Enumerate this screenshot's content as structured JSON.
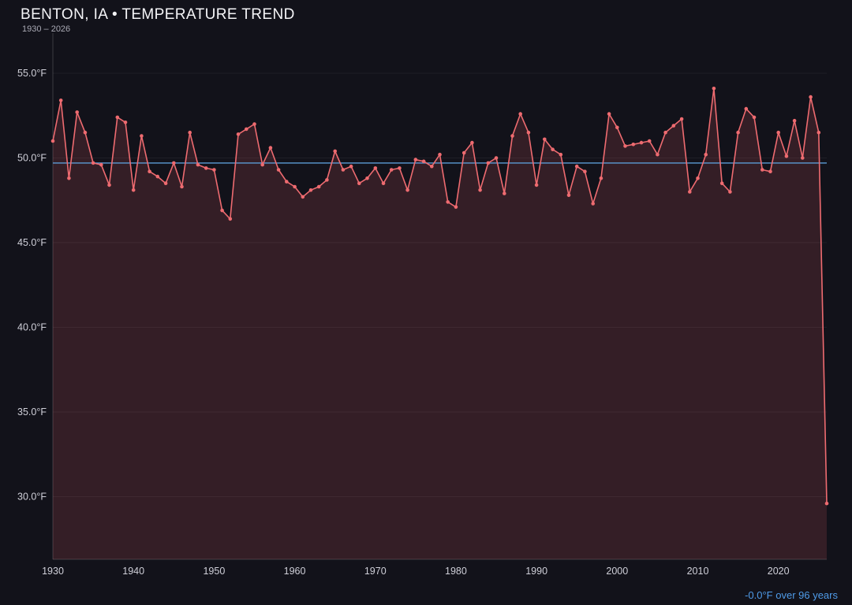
{
  "header": {
    "title": "BENTON, IA • TEMPERATURE TREND",
    "subtitle": "1930 – 2026"
  },
  "footer": {
    "trend_summary": "-0.0°F over 96 years"
  },
  "colors": {
    "background": "#12121a",
    "line": "#ee6b70",
    "point": "#ee6b70",
    "area_fill": "rgba(232,96,106,0.16)",
    "trend_line": "#5b9bd5",
    "grid": "rgba(255,255,255,0.06)",
    "axis": "rgba(255,255,255,0.18)",
    "tick_text": "#cfcfd8"
  },
  "chart_data": {
    "type": "line",
    "title": "BENTON, IA • TEMPERATURE TREND",
    "xlabel": "",
    "ylabel": "",
    "grid": true,
    "legend_position": "none",
    "ylim": [
      26.3,
      57.0
    ],
    "xlim": [
      1930,
      2026
    ],
    "y_ticks": [
      {
        "value": 55,
        "label": "55.0°F"
      },
      {
        "value": 50,
        "label": "50.0°F"
      },
      {
        "value": 45,
        "label": "45.0°F"
      },
      {
        "value": 40,
        "label": "40.0°F"
      },
      {
        "value": 35,
        "label": "35.0°F"
      },
      {
        "value": 30,
        "label": "30.0°F"
      }
    ],
    "x_ticks": [
      {
        "value": 1930,
        "label": "1930"
      },
      {
        "value": 1940,
        "label": "1940"
      },
      {
        "value": 1950,
        "label": "1950"
      },
      {
        "value": 1960,
        "label": "1960"
      },
      {
        "value": 1970,
        "label": "1970"
      },
      {
        "value": 1980,
        "label": "1980"
      },
      {
        "value": 1990,
        "label": "1990"
      },
      {
        "value": 2000,
        "label": "2000"
      },
      {
        "value": 2010,
        "label": "2010"
      },
      {
        "value": 2020,
        "label": "2020"
      }
    ],
    "trend_line": {
      "value": 49.7
    },
    "series": [
      {
        "name": "Temperature",
        "x": [
          1930,
          1931,
          1932,
          1933,
          1934,
          1935,
          1936,
          1937,
          1938,
          1939,
          1940,
          1941,
          1942,
          1943,
          1944,
          1945,
          1946,
          1947,
          1948,
          1949,
          1950,
          1951,
          1952,
          1953,
          1954,
          1955,
          1956,
          1957,
          1958,
          1959,
          1960,
          1961,
          1962,
          1963,
          1964,
          1965,
          1966,
          1967,
          1968,
          1969,
          1970,
          1971,
          1972,
          1973,
          1974,
          1975,
          1976,
          1977,
          1978,
          1979,
          1980,
          1981,
          1982,
          1983,
          1984,
          1985,
          1986,
          1987,
          1988,
          1989,
          1990,
          1991,
          1992,
          1993,
          1994,
          1995,
          1996,
          1997,
          1998,
          1999,
          2000,
          2001,
          2002,
          2003,
          2004,
          2005,
          2006,
          2007,
          2008,
          2009,
          2010,
          2011,
          2012,
          2013,
          2014,
          2015,
          2016,
          2017,
          2018,
          2019,
          2020,
          2021,
          2022,
          2023,
          2024,
          2025,
          2026
        ],
        "values": [
          51.0,
          53.4,
          48.8,
          52.7,
          51.5,
          49.7,
          49.6,
          48.4,
          52.4,
          52.1,
          48.1,
          51.3,
          49.2,
          48.9,
          48.5,
          49.7,
          48.3,
          51.5,
          49.6,
          49.4,
          49.3,
          46.9,
          46.4,
          51.4,
          51.7,
          52.0,
          49.6,
          50.6,
          49.3,
          48.6,
          48.3,
          47.7,
          48.1,
          48.3,
          48.7,
          50.4,
          49.3,
          49.5,
          48.5,
          48.8,
          49.4,
          48.5,
          49.3,
          49.4,
          48.1,
          49.9,
          49.8,
          49.5,
          50.2,
          47.4,
          47.1,
          50.3,
          50.9,
          48.1,
          49.7,
          50.0,
          47.9,
          51.3,
          52.6,
          51.5,
          48.4,
          51.1,
          50.5,
          50.2,
          47.8,
          49.5,
          49.2,
          47.3,
          48.8,
          52.6,
          51.8,
          50.7,
          50.8,
          50.9,
          51.0,
          50.2,
          51.5,
          51.9,
          52.3,
          48.0,
          48.8,
          50.2,
          54.1,
          48.5,
          48.0,
          51.5,
          52.9,
          52.4,
          49.3,
          49.2,
          51.5,
          50.1,
          52.2,
          50.0,
          53.6,
          51.5,
          29.6
        ]
      }
    ]
  }
}
